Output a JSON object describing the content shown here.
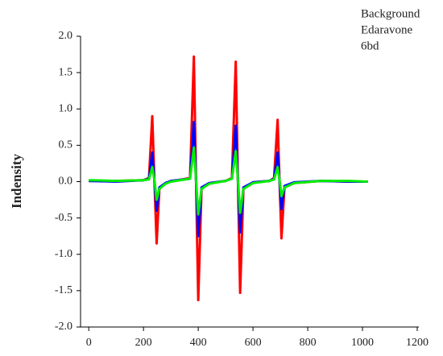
{
  "chart_data": {
    "type": "line",
    "y_label": "Indensity",
    "x": [
      0,
      100,
      200,
      220,
      232,
      240,
      248,
      258,
      280,
      300,
      370,
      384,
      392,
      400,
      412,
      440,
      500,
      523,
      537,
      545,
      553,
      565,
      600,
      660,
      677,
      690,
      697,
      704,
      715,
      750,
      850,
      950,
      1020
    ],
    "series": [
      {
        "name": "Background",
        "color": "#ff0000",
        "values": [
          0.01,
          0.01,
          0.02,
          0.05,
          0.9,
          0,
          -0.85,
          -0.1,
          -0.02,
          0,
          0.05,
          1.72,
          0,
          -1.63,
          -0.1,
          -0.02,
          0.01,
          0.05,
          1.65,
          0,
          -1.53,
          -0.1,
          -0.01,
          0.01,
          0.05,
          0.85,
          0,
          -0.78,
          -0.08,
          -0.02,
          0.01,
          0,
          0
        ]
      },
      {
        "name": "Edaravone",
        "color": "#0000ff",
        "values": [
          0.01,
          0.0,
          0.02,
          0.04,
          0.4,
          0,
          -0.4,
          -0.08,
          -0.02,
          0.01,
          0.04,
          0.82,
          0,
          -0.75,
          -0.08,
          -0.02,
          0.01,
          0.04,
          0.77,
          0,
          -0.7,
          -0.08,
          -0.01,
          0.01,
          0.04,
          0.4,
          0,
          -0.38,
          -0.06,
          -0.01,
          0.01,
          0,
          0
        ]
      },
      {
        "name": "6bd",
        "color": "#00ee00",
        "values": [
          0.02,
          0.01,
          0.02,
          0.03,
          0.2,
          0.02,
          -0.25,
          -0.1,
          -0.03,
          0,
          0.04,
          0.47,
          0.02,
          -0.45,
          -0.1,
          -0.03,
          0.01,
          0.04,
          0.42,
          0.02,
          -0.43,
          -0.1,
          -0.02,
          0.01,
          0.03,
          0.2,
          0.02,
          -0.2,
          -0.08,
          -0.02,
          0.01,
          0.01,
          0
        ]
      }
    ],
    "xlim": [
      -30,
      1200
    ],
    "xticks": [
      0,
      200,
      400,
      600,
      800,
      1000,
      1200
    ],
    "ylim": [
      -2,
      2
    ],
    "yticks": [
      {
        "value": -2,
        "label": "-2.0"
      },
      {
        "value": -1.5,
        "label": "-1.5"
      },
      {
        "value": -1,
        "label": "-1.0"
      },
      {
        "value": -0.5,
        "label": "-0.5"
      },
      {
        "value": 0,
        "label": "0.0"
      },
      {
        "value": 0.5,
        "label": "0.5"
      },
      {
        "value": 1,
        "label": "1.0"
      },
      {
        "value": 1.5,
        "label": "1.5"
      },
      {
        "value": 2,
        "label": "2.0"
      }
    ],
    "legend": "top-right",
    "grid": false
  }
}
